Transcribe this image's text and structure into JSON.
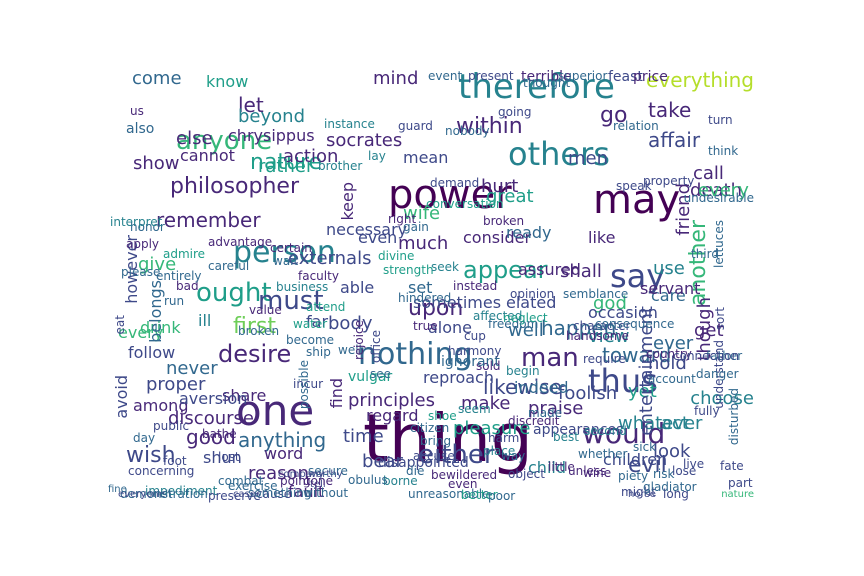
{
  "colors": {
    "background": "#ffffff",
    "palette": [
      "#440154",
      "#482878",
      "#3e4989",
      "#31688e",
      "#26828e",
      "#1f9e89",
      "#35b779",
      "#6ece58",
      "#b5de2b",
      "#fde725"
    ]
  },
  "words": [
    "thing",
    "power",
    "one",
    "therefore",
    "may",
    "person",
    "nothing",
    "say",
    "would",
    "others",
    "thus",
    "anyone",
    "desire",
    "ought",
    "must",
    "either",
    "remember",
    "nature",
    "philosopher",
    "within",
    "appear",
    "first",
    "man",
    "upon",
    "action",
    "take",
    "good",
    "come",
    "wish",
    "anything",
    "likewise",
    "never",
    "happen",
    "another",
    "also",
    "mind",
    "much",
    "hurt",
    "consider",
    "time",
    "well",
    "body",
    "discourse",
    "evil",
    "let",
    "go",
    "reason",
    "keep",
    "whatever",
    "make",
    "pleasure",
    "find",
    "toward",
    "view",
    "death",
    "affair",
    "beyond",
    "socrates",
    "know",
    "else",
    "cannot",
    "chrysippus",
    "show",
    "rather",
    "call",
    "able",
    "give",
    "drink",
    "follow",
    "shall",
    "praise",
    "alone",
    "ever",
    "use",
    "look",
    "act",
    "yet",
    "bear",
    "god",
    "regard",
    "every",
    "like",
    "occasion",
    "elated",
    "assured",
    "necessary",
    "wife",
    "great",
    "ready",
    "friend",
    "though",
    "externals",
    "sometimes",
    "mean",
    "even",
    "set",
    "get",
    "hold",
    "foolish",
    "indeed",
    "proper",
    "children",
    "child",
    "shun",
    "share",
    "among",
    "word",
    "fault",
    "principles",
    "entertainment",
    "avoid",
    "aversion",
    "men",
    "care",
    "choose",
    "servant",
    "belongs",
    "however",
    "ill",
    "everything",
    "every",
    "vulgar",
    "far",
    "reproach",
    "sold",
    "ignorant",
    "well",
    "harmony",
    "cup",
    "account",
    "appearances",
    "understand",
    "country",
    "disappointed",
    "father",
    "place",
    "little",
    "object",
    "wine",
    "part",
    "impediment",
    "preserve",
    "without",
    "demonstration",
    "secure",
    "bathe",
    "lost",
    "water",
    "incur",
    "combat",
    "possible",
    "honor",
    "admire",
    "interpret",
    "apply",
    "please",
    "bad",
    "run",
    "value",
    "attend",
    "terrible",
    "feast",
    "price",
    "present",
    "event",
    "superior",
    "thought",
    "speak",
    "relation",
    "property",
    "turn",
    "think",
    "demand",
    "conversation",
    "undesirable",
    "lettuces",
    "gain",
    "divine",
    "strength",
    "certain",
    "advantage",
    "business",
    "wait",
    "faculty",
    "careful",
    "entirely",
    "nobody",
    "guard",
    "instance",
    "going",
    "opinion",
    "broken",
    "right",
    "seek",
    "true",
    "freedom",
    "instead",
    "affected",
    "semblance",
    "character",
    "consequence",
    "third",
    "lay",
    "brother",
    "us",
    "ship",
    "cause",
    "worthy",
    "tell",
    "company",
    "hindered",
    "become",
    "neglect",
    "begin",
    "rejoice",
    "office",
    "see",
    "require",
    "handsome",
    "shoe",
    "bring",
    "accuse",
    "citizen",
    "whether",
    "second",
    "unless",
    "best",
    "might",
    "risk",
    "piety",
    "horse",
    "gladiator",
    "live",
    "lose",
    "long",
    "fully",
    "sort",
    "disturbed",
    "danger",
    "connection",
    "discredit",
    "made",
    "seem",
    "harm",
    "way",
    "unreasonable",
    "bewildered",
    "borne",
    "better",
    "die",
    "eat",
    "day",
    "public",
    "foot",
    "concerning",
    "something",
    "exercise",
    "point",
    "obulus",
    "everyone",
    "gone",
    "case",
    "broken",
    "even",
    "sick",
    "fate",
    "nature",
    "fine",
    "rich",
    "poor"
  ]
}
